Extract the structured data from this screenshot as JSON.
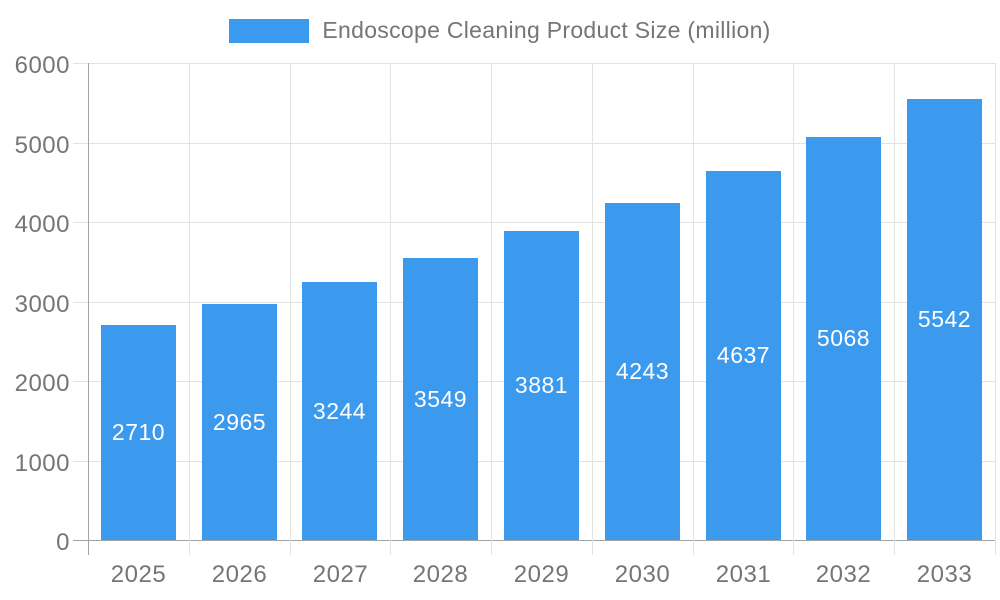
{
  "legend": {
    "label": "Endoscope Cleaning Product Size (million)"
  },
  "colors": {
    "bar": "#3b99ee",
    "grid": "#e3e3e3",
    "axis": "#a3a3a3",
    "tick_label": "#757575",
    "value_label": "#ffffff",
    "background": "#ffffff"
  },
  "chart_data": {
    "type": "bar",
    "title": "Endoscope Cleaning Product Size (million)",
    "series_name": "Endoscope Cleaning Product Size (million)",
    "categories": [
      "2025",
      "2026",
      "2027",
      "2028",
      "2029",
      "2030",
      "2031",
      "2032",
      "2033"
    ],
    "values": [
      2710,
      2965,
      3244,
      3549,
      3881,
      4243,
      4637,
      5068,
      5542
    ],
    "value_label_position": "inside-center",
    "xlabel": "",
    "ylabel": "",
    "ylim": [
      0,
      6000
    ],
    "yticks": [
      0,
      1000,
      2000,
      3000,
      4000,
      5000,
      6000
    ],
    "grid": true,
    "legend_position": "top-center"
  }
}
